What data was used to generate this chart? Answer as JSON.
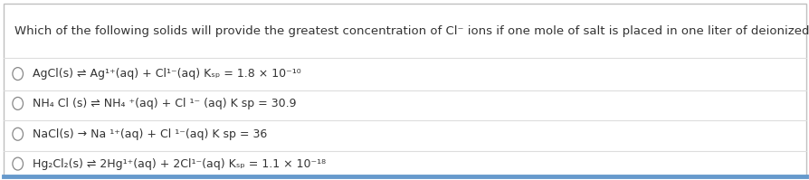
{
  "background_color": "#ffffff",
  "border_color": "#c0c0c0",
  "bottom_border_color": "#6699cc",
  "title": "Which of the following solids will provide the greatest concentration of Cl⁻ ions if one mole of salt is placed in one liter of deionized water?",
  "options": [
    "AgCl(s) ⇌ Ag¹⁺(aq) + Cl¹⁻(aq) Kₛₚ = 1.8 × 10⁻¹⁰",
    "NH₄ Cl (s) ⇌ NH₄ ⁺(aq) + Cl ¹⁻ (aq) K sp = 30.9",
    "NaCl(s) → Na ¹⁺(aq) + Cl ¹⁻(aq) K sp = 36",
    "Hg₂Cl₂(s) ⇌ 2Hg¹⁺(aq) + 2Cl¹⁻(aq) Kₛₚ = 1.1 × 10⁻¹⁸"
  ],
  "text_color": "#333333",
  "title_fontsize": 9.5,
  "option_fontsize": 9,
  "radio_color": "#888888",
  "separator_color": "#dddddd",
  "figsize": [
    8.95,
    1.99
  ],
  "dpi": 100
}
